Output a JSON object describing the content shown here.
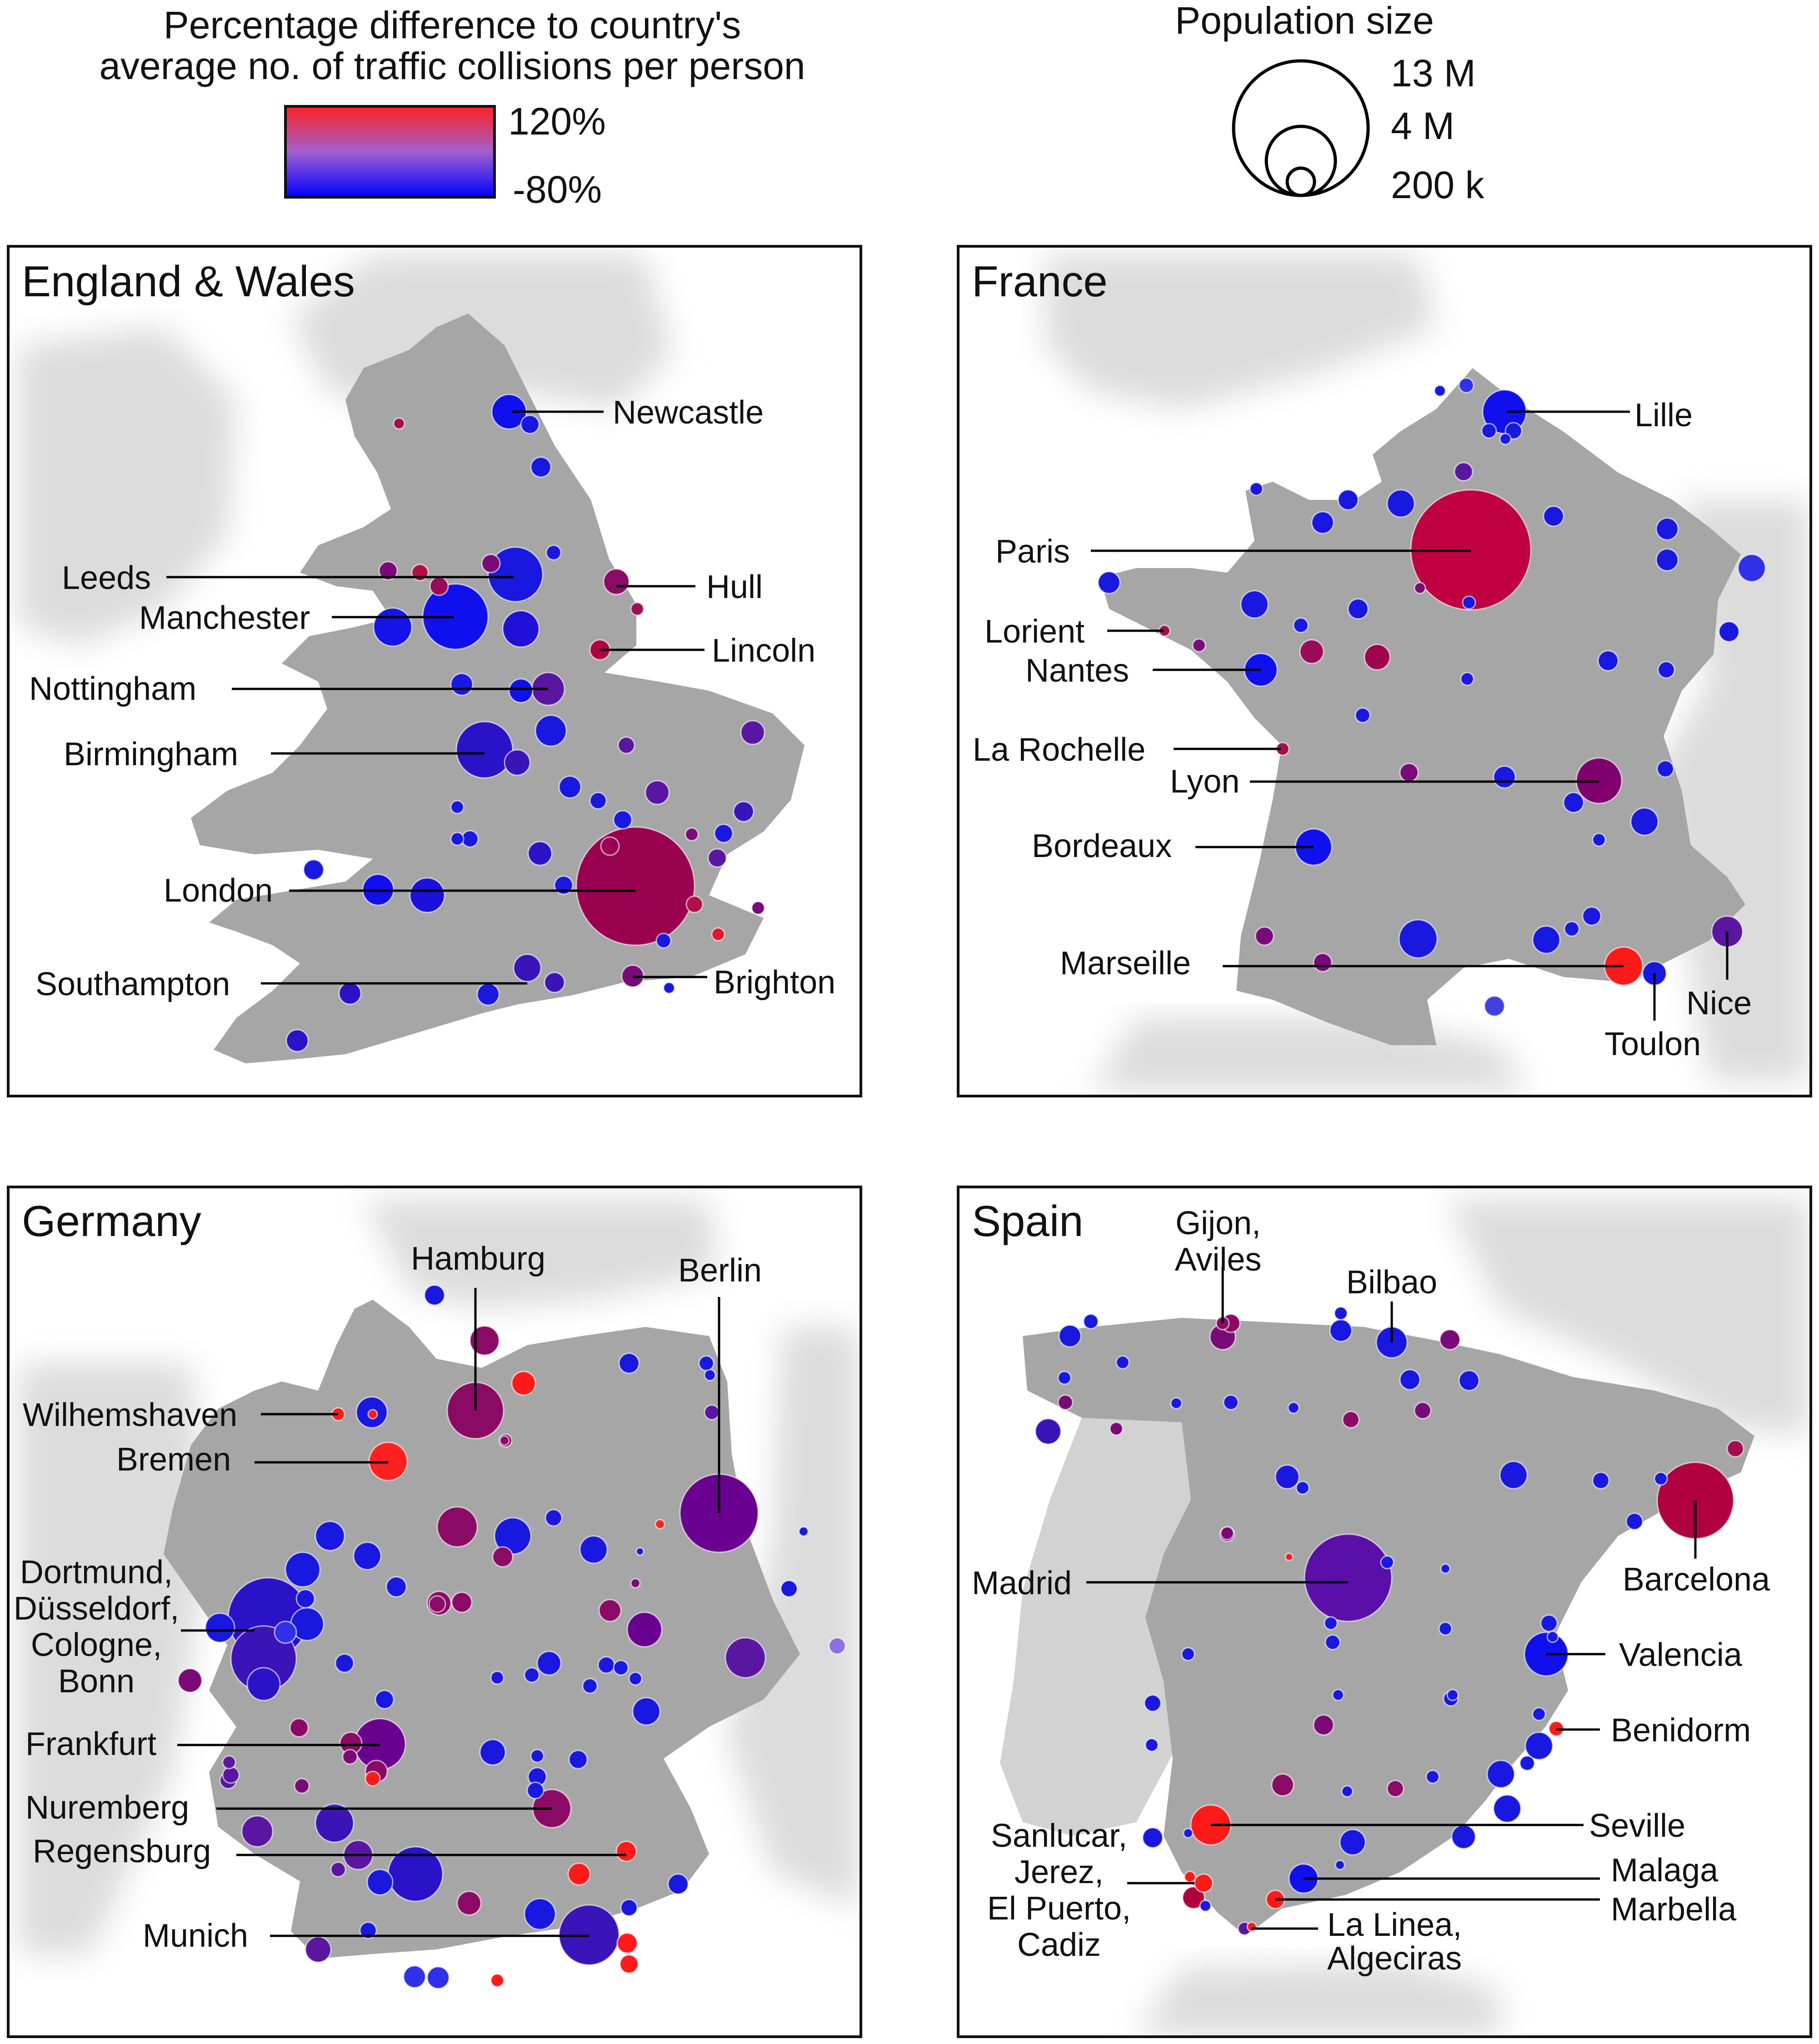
{
  "legend": {
    "color_title_line1": "Percentage difference to country's",
    "color_title_line2": "average no. of traffic collisions per person",
    "color_max_label": "120%",
    "color_min_label": "-80%",
    "color_max_hex": "#ff2020",
    "color_min_hex": "#0000ff",
    "size_title": "Population size",
    "size_labels": [
      "13 M",
      "4 M",
      "200 k"
    ]
  },
  "panels": [
    {
      "id": "england-wales",
      "title": "England & Wales",
      "labels": [
        "Newcastle",
        "Leeds",
        "Hull",
        "Manchester",
        "Lincoln",
        "Nottingham",
        "Birmingham",
        "London",
        "Southampton",
        "Brighton"
      ]
    },
    {
      "id": "france",
      "title": "France",
      "labels": [
        "Lille",
        "Paris",
        "Lorient",
        "Nantes",
        "La Rochelle",
        "Lyon",
        "Bordeaux",
        "Marseille",
        "Nice",
        "Toulon"
      ]
    },
    {
      "id": "germany",
      "title": "Germany",
      "labels": [
        "Hamburg",
        "Berlin",
        "Wilhemshaven",
        "Bremen",
        "Dortmund,",
        "Düsseldorf,",
        "Cologne,",
        "Bonn",
        "Frankfurt",
        "Nuremberg",
        "Regensburg",
        "Munich"
      ]
    },
    {
      "id": "spain",
      "title": "Spain",
      "labels": [
        "Gijon,",
        "Aviles",
        "Bilbao",
        "Madrid",
        "Barcelona",
        "Valencia",
        "Benidorm",
        "Seville",
        "Sanlucar,",
        "Jerez,",
        "El Puerto,",
        "Cadiz",
        "Malaga",
        "Marbella",
        "La Linea,",
        "Algeciras"
      ]
    }
  ],
  "colors": {
    "land": "#a6a6a6",
    "neighbour_land": "#dcdcdc",
    "sea": "#ffffff",
    "high": "#ff1a1a",
    "mid": "#a0005a",
    "purple": "#6a0090",
    "low": "#0000ee"
  }
}
